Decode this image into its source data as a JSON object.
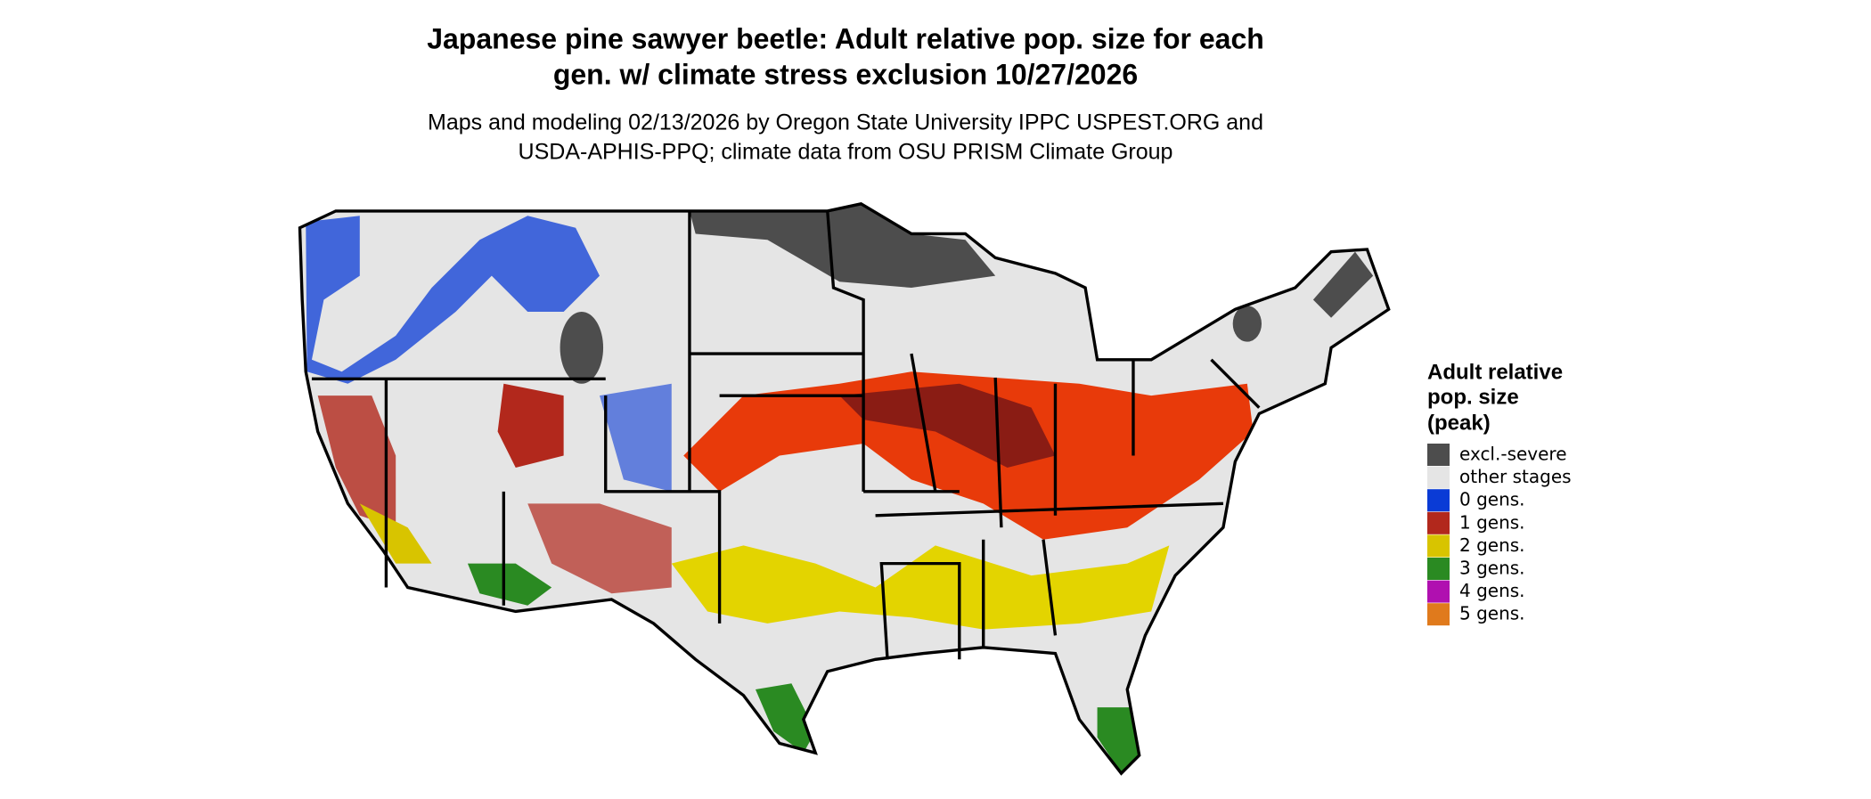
{
  "title": [
    "Japanese pine sawyer beetle: Adult relative pop. size for each",
    "gen. w/ climate stress exclusion 10/27/2026"
  ],
  "subtitle": [
    "Maps and modeling 02/13/2026 by Oregon State University IPPC USPEST.ORG and",
    "USDA-APHIS-PPQ; climate data from OSU PRISM Climate Group"
  ],
  "legend": {
    "title": [
      "Adult relative",
      "pop. size",
      "(peak)"
    ],
    "items": [
      {
        "label": "excl.-severe",
        "color": "#4d4d4d"
      },
      {
        "label": "other stages",
        "color": "#e5e5e5"
      },
      {
        "label": "0 gens.",
        "color": "#0a3bd6"
      },
      {
        "label": "1 gens.",
        "color": "#b2281c"
      },
      {
        "label": "2 gens.",
        "color": "#d8c400"
      },
      {
        "label": "3 gens.",
        "color": "#2a8a22"
      },
      {
        "label": "4 gens.",
        "color": "#b010b0"
      },
      {
        "label": "5 gens.",
        "color": "#e07a1c"
      }
    ]
  }
}
